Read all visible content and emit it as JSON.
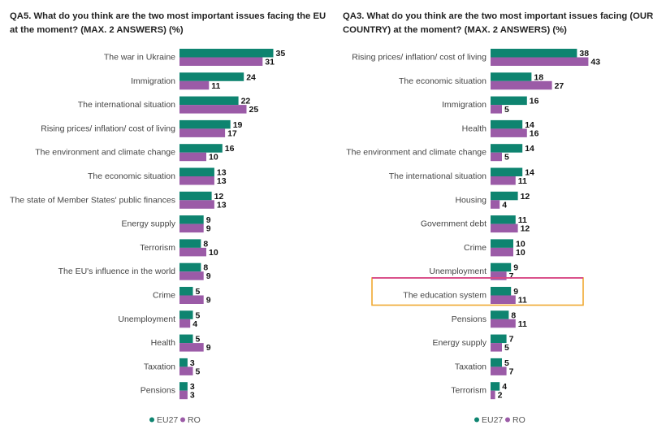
{
  "colors": {
    "eu27": "#0e8470",
    "ro": "#9b5ba7",
    "highlight_top": "#d6408c",
    "highlight_bottom": "#f0a830"
  },
  "chart_data": [
    {
      "type": "bar",
      "orientation": "horizontal",
      "title": "QA5. What do you think are the two most important issues facing the EU at the moment? (MAX. 2 ANSWERS) (%)",
      "categories": [
        "The war in Ukraine",
        "Immigration",
        "The international situation",
        "Rising prices/ inflation/ cost of living",
        "The environment and climate change",
        "The economic situation",
        "The state of Member States' public finances",
        "Energy supply",
        "Terrorism",
        "The EU's influence in the world",
        "Crime",
        "Unemployment",
        "Health",
        "Taxation",
        "Pensions"
      ],
      "series": [
        {
          "name": "EU27",
          "values": [
            35,
            24,
            22,
            19,
            16,
            13,
            12,
            9,
            8,
            8,
            5,
            5,
            5,
            3,
            3
          ]
        },
        {
          "name": "RO",
          "values": [
            31,
            11,
            25,
            17,
            10,
            13,
            13,
            9,
            10,
            9,
            9,
            4,
            9,
            5,
            3
          ]
        }
      ],
      "legend_position": "bottom",
      "highlight_category": null
    },
    {
      "type": "bar",
      "orientation": "horizontal",
      "title": "QA3. What do you think are the two most important issues facing (OUR COUNTRY) at the moment? (MAX. 2 ANSWERS) (%)",
      "categories": [
        "Rising prices/ inflation/ cost of living",
        "The economic situation",
        "Immigration",
        "Health",
        "The environment and climate change",
        "The international situation",
        "Housing",
        "Government debt",
        "Crime",
        "Unemployment",
        "The education system",
        "Pensions",
        "Energy supply",
        "Taxation",
        "Terrorism"
      ],
      "series": [
        {
          "name": "EU27",
          "values": [
            38,
            18,
            16,
            14,
            14,
            14,
            12,
            11,
            10,
            9,
            9,
            8,
            7,
            5,
            4
          ]
        },
        {
          "name": "RO",
          "values": [
            43,
            27,
            5,
            16,
            5,
            11,
            4,
            12,
            10,
            7,
            11,
            11,
            5,
            7,
            2
          ]
        }
      ],
      "legend_position": "bottom",
      "highlight_category": "The education system"
    }
  ]
}
